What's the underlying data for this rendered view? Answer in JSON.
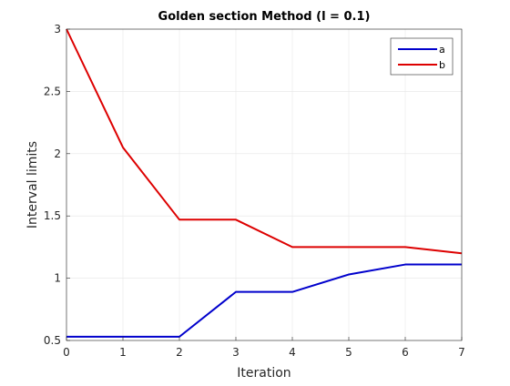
{
  "chart_data": {
    "type": "line",
    "title": "Golden section Method (l = 0.1)",
    "xlabel": "Iteration",
    "ylabel": "Interval limits",
    "x": [
      0,
      1,
      2,
      3,
      4,
      5,
      6,
      7
    ],
    "xlim": [
      0,
      7
    ],
    "ylim": [
      0.5,
      3
    ],
    "xticks": [
      "0",
      "1",
      "2",
      "3",
      "4",
      "5",
      "6",
      "7"
    ],
    "yticks": [
      "0.5",
      "1",
      "1.5",
      "2",
      "2.5",
      "3"
    ],
    "grid": true,
    "legend_position": "top-right",
    "series": [
      {
        "name": "a",
        "color": "#0000cc",
        "values": [
          0.53,
          0.53,
          0.53,
          0.89,
          0.89,
          1.03,
          1.11,
          1.11
        ]
      },
      {
        "name": "b",
        "color": "#dd0000",
        "values": [
          3.0,
          2.05,
          1.47,
          1.47,
          1.25,
          1.25,
          1.25,
          1.2
        ]
      }
    ]
  }
}
